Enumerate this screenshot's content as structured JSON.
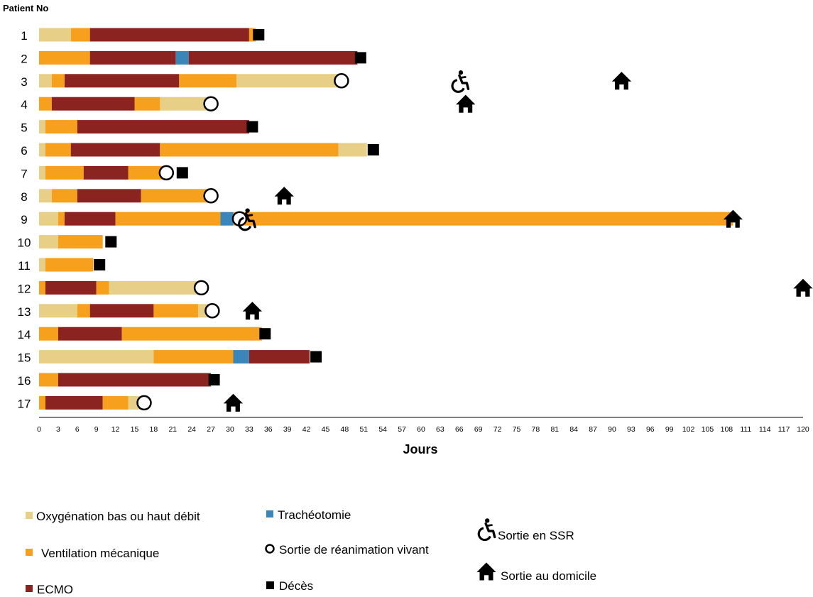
{
  "chart_data": {
    "type": "gantt",
    "ylabel": "Patient No",
    "xlabel": "Jours",
    "xlim": [
      0,
      120
    ],
    "x_ticks": [
      0,
      3,
      6,
      9,
      12,
      15,
      18,
      21,
      24,
      27,
      30,
      33,
      36,
      39,
      42,
      45,
      48,
      51,
      54,
      57,
      60,
      63,
      66,
      69,
      72,
      75,
      78,
      81,
      84,
      87,
      90,
      93,
      96,
      99,
      102,
      105,
      108,
      111,
      114,
      117,
      120
    ],
    "categories": [
      "Oxygénation bas ou haut débit",
      "Ventilation mécanique",
      "ECMO",
      "Trachéotomie"
    ],
    "colors": {
      "Oxygénation bas ou haut débit": "#e8cf87",
      "Ventilation mécanique": "#f7a01d",
      "ECMO": "#8b2420",
      "Trachéotomie": "#3b86b8",
      "marker": "#000000"
    },
    "patients": [
      {
        "id": "1",
        "segments": [
          [
            "Oxygénation bas ou haut débit",
            0,
            5
          ],
          [
            "Ventilation mécanique",
            5,
            8
          ],
          [
            "ECMO",
            8,
            33
          ],
          [
            "Ventilation mécanique",
            33,
            34
          ]
        ],
        "events": [
          [
            "death",
            34.5
          ]
        ]
      },
      {
        "id": "2",
        "segments": [
          [
            "Ventilation mécanique",
            0,
            8
          ],
          [
            "ECMO",
            8,
            21.5
          ],
          [
            "Trachéotomie",
            21.5,
            23.5
          ],
          [
            "ECMO",
            23.5,
            50
          ]
        ],
        "events": [
          [
            "death",
            50.5
          ]
        ]
      },
      {
        "id": "3",
        "segments": [
          [
            "Oxygénation bas ou haut débit",
            0,
            2
          ],
          [
            "Ventilation mécanique",
            2,
            4
          ],
          [
            "ECMO",
            4,
            22
          ],
          [
            "Ventilation mécanique",
            22,
            31
          ],
          [
            "Oxygénation bas ou haut débit",
            31,
            47.5
          ]
        ],
        "events": [
          [
            "icu_exit",
            47.5
          ],
          [
            "ssr",
            66
          ],
          [
            "home",
            91.5
          ]
        ]
      },
      {
        "id": "4",
        "segments": [
          [
            "Ventilation mécanique",
            0,
            2
          ],
          [
            "ECMO",
            2,
            15
          ],
          [
            "Ventilation mécanique",
            15,
            19
          ],
          [
            "Oxygénation bas ou haut débit",
            19,
            27
          ]
        ],
        "events": [
          [
            "icu_exit",
            27
          ],
          [
            "home",
            67
          ]
        ]
      },
      {
        "id": "5",
        "segments": [
          [
            "Oxygénation bas ou haut débit",
            0,
            1
          ],
          [
            "Ventilation mécanique",
            1,
            6
          ],
          [
            "ECMO",
            6,
            33
          ]
        ],
        "events": [
          [
            "death",
            33.5
          ]
        ]
      },
      {
        "id": "6",
        "segments": [
          [
            "Oxygénation bas ou haut débit",
            0,
            1
          ],
          [
            "Ventilation mécanique",
            1,
            5
          ],
          [
            "ECMO",
            5,
            19
          ],
          [
            "Ventilation mécanique",
            19,
            47
          ],
          [
            "Oxygénation bas ou haut débit",
            47,
            51.5
          ]
        ],
        "events": [
          [
            "death",
            52.5
          ]
        ]
      },
      {
        "id": "7",
        "segments": [
          [
            "Oxygénation bas ou haut débit",
            0,
            1
          ],
          [
            "Ventilation mécanique",
            1,
            7
          ],
          [
            "ECMO",
            7,
            14
          ],
          [
            "Ventilation mécanique",
            14,
            20
          ]
        ],
        "events": [
          [
            "icu_exit",
            20
          ],
          [
            "death",
            22.5
          ]
        ]
      },
      {
        "id": "8",
        "segments": [
          [
            "Oxygénation bas ou haut débit",
            0,
            2
          ],
          [
            "Ventilation mécanique",
            2,
            6
          ],
          [
            "ECMO",
            6,
            16
          ],
          [
            "Ventilation mécanique",
            16,
            27
          ]
        ],
        "events": [
          [
            "icu_exit",
            27
          ],
          [
            "home",
            38.5
          ]
        ]
      },
      {
        "id": "9",
        "segments": [
          [
            "Oxygénation bas ou haut débit",
            0,
            3
          ],
          [
            "Ventilation mécanique",
            3,
            4
          ],
          [
            "ECMO",
            4,
            12
          ],
          [
            "Ventilation mécanique",
            12,
            28.5
          ],
          [
            "Trachéotomie",
            28.5,
            30.5
          ],
          [
            "Ventilation mécanique",
            30.5,
            109
          ]
        ],
        "events": [
          [
            "icu_exit",
            31.5
          ],
          [
            "ssr",
            32.5
          ],
          [
            "home",
            109
          ]
        ]
      },
      {
        "id": "10",
        "segments": [
          [
            "Oxygénation bas ou haut débit",
            0,
            3
          ],
          [
            "Ventilation mécanique",
            3,
            10
          ]
        ],
        "events": [
          [
            "death",
            11.3
          ]
        ]
      },
      {
        "id": "11",
        "segments": [
          [
            "Oxygénation bas ou haut débit",
            0,
            1
          ],
          [
            "Ventilation mécanique",
            1,
            8.5
          ]
        ],
        "events": [
          [
            "death",
            9.5
          ]
        ]
      },
      {
        "id": "12",
        "segments": [
          [
            "Ventilation mécanique",
            0,
            1
          ],
          [
            "ECMO",
            1,
            9
          ],
          [
            "Ventilation mécanique",
            9,
            11
          ],
          [
            "Oxygénation bas ou haut débit",
            11,
            25.5
          ]
        ],
        "events": [
          [
            "icu_exit",
            25.5
          ],
          [
            "home",
            120
          ]
        ]
      },
      {
        "id": "13",
        "segments": [
          [
            "Oxygénation bas ou haut débit",
            0,
            6
          ],
          [
            "Ventilation mécanique",
            6,
            8
          ],
          [
            "ECMO",
            8,
            18
          ],
          [
            "Ventilation mécanique",
            18,
            25
          ],
          [
            "Oxygénation bas ou haut débit",
            25,
            27
          ]
        ],
        "events": [
          [
            "icu_exit",
            27.2
          ],
          [
            "home",
            33.5
          ]
        ]
      },
      {
        "id": "14",
        "segments": [
          [
            "Ventilation mécanique",
            0,
            3
          ],
          [
            "ECMO",
            3,
            13
          ],
          [
            "Ventilation mécanique",
            13,
            35
          ]
        ],
        "events": [
          [
            "death",
            35.5
          ]
        ]
      },
      {
        "id": "15",
        "segments": [
          [
            "Oxygénation bas ou haut débit",
            0,
            18
          ],
          [
            "Ventilation mécanique",
            18,
            30.5
          ],
          [
            "Trachéotomie",
            30.5,
            33
          ],
          [
            "ECMO",
            33,
            42.5
          ]
        ],
        "events": [
          [
            "death",
            43.5
          ]
        ]
      },
      {
        "id": "16",
        "segments": [
          [
            "Ventilation mécanique",
            0,
            3
          ],
          [
            "ECMO",
            3,
            27
          ]
        ],
        "events": [
          [
            "death",
            27.5
          ]
        ]
      },
      {
        "id": "17",
        "segments": [
          [
            "Ventilation mécanique",
            0,
            1
          ],
          [
            "ECMO",
            1,
            10
          ],
          [
            "Ventilation mécanique",
            10,
            14
          ],
          [
            "Oxygénation bas ou haut débit",
            14,
            16.5
          ]
        ],
        "events": [
          [
            "icu_exit",
            16.5
          ],
          [
            "home",
            30.5
          ]
        ]
      }
    ]
  },
  "legend": {
    "o2": "Oxygénation bas ou haut débit",
    "vent": "Ventilation mécanique",
    "ecmo": "ECMO",
    "trach": "Trachéotomie",
    "icu_exit": "Sortie de réanimation vivant",
    "death": "Décès",
    "ssr": "Sortie en SSR",
    "home": "Sortie au domicile"
  }
}
